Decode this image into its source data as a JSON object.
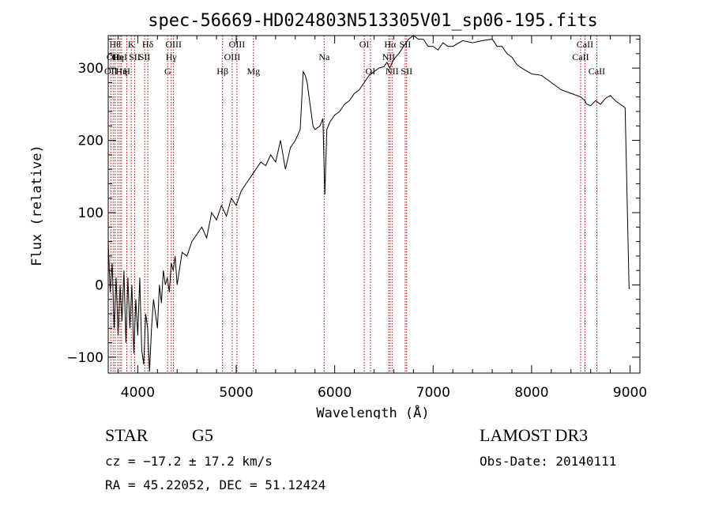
{
  "chart_data": {
    "type": "line",
    "title": "spec-56669-HD024803N513305V01_sp06-195.fits",
    "xlabel": "Wavelength (Å)",
    "ylabel": "Flux (relative)",
    "xlim": [
      3700,
      9100
    ],
    "ylim": [
      -122,
      345
    ],
    "xticks": [
      4000,
      5000,
      6000,
      7000,
      8000,
      9000
    ],
    "xtick_labels": [
      "4000",
      "5000",
      "6000",
      "7000",
      "8000",
      "9000"
    ],
    "yticks": [
      -100,
      0,
      100,
      200,
      300
    ],
    "ytick_labels": [
      "−100",
      "0",
      "100",
      "200",
      "300"
    ],
    "series": [
      {
        "name": "flux",
        "color": "#000000",
        "x": [
          3700,
          3720,
          3740,
          3760,
          3780,
          3800,
          3820,
          3840,
          3860,
          3880,
          3900,
          3920,
          3940,
          3960,
          3980,
          4000,
          4020,
          4040,
          4060,
          4080,
          4100,
          4120,
          4140,
          4160,
          4180,
          4200,
          4220,
          4240,
          4260,
          4280,
          4300,
          4320,
          4340,
          4360,
          4380,
          4400,
          4450,
          4500,
          4550,
          4600,
          4650,
          4700,
          4750,
          4800,
          4850,
          4900,
          4950,
          5000,
          5050,
          5100,
          5150,
          5200,
          5250,
          5300,
          5350,
          5400,
          5450,
          5500,
          5550,
          5600,
          5650,
          5680,
          5700,
          5720,
          5740,
          5760,
          5780,
          5800,
          5850,
          5880,
          5900,
          5920,
          5950,
          6000,
          6050,
          6100,
          6150,
          6200,
          6250,
          6300,
          6350,
          6400,
          6450,
          6500,
          6530,
          6560,
          6600,
          6650,
          6700,
          6750,
          6800,
          6850,
          6900,
          6950,
          7000,
          7050,
          7100,
          7150,
          7200,
          7300,
          7400,
          7500,
          7600,
          7650,
          7700,
          7750,
          7800,
          7850,
          7900,
          8000,
          8100,
          8200,
          8300,
          8400,
          8500,
          8540,
          8560,
          8600,
          8650,
          8700,
          8750,
          8800,
          8850,
          8900,
          8950,
          8990,
          9000
        ],
        "values": [
          60,
          -10,
          30,
          -60,
          10,
          -70,
          0,
          -50,
          20,
          -80,
          10,
          -60,
          0,
          -95,
          -20,
          -70,
          10,
          -90,
          -110,
          -40,
          -60,
          -120,
          -60,
          -20,
          -40,
          -60,
          0,
          -25,
          20,
          0,
          10,
          -10,
          30,
          20,
          40,
          0,
          45,
          40,
          60,
          70,
          80,
          65,
          100,
          90,
          110,
          95,
          120,
          110,
          130,
          140,
          150,
          160,
          170,
          165,
          180,
          170,
          200,
          160,
          190,
          200,
          215,
          295,
          290,
          280,
          260,
          240,
          220,
          215,
          220,
          230,
          125,
          215,
          225,
          235,
          240,
          250,
          255,
          265,
          270,
          280,
          290,
          295,
          300,
          302,
          308,
          300,
          312,
          320,
          330,
          340,
          345,
          340,
          340,
          330,
          330,
          325,
          335,
          330,
          330,
          338,
          335,
          338,
          340,
          330,
          330,
          320,
          315,
          305,
          300,
          292,
          290,
          280,
          270,
          265,
          260,
          255,
          250,
          248,
          255,
          250,
          258,
          262,
          255,
          250,
          245,
          -5,
          -5
        ]
      }
    ],
    "lines": [
      {
        "lam": 3727,
        "label": "OII",
        "row": 2
      },
      {
        "lam": 3750,
        "label": "OII",
        "row": 1
      },
      {
        "lam": 3770,
        "label": "Hθ",
        "row": 0
      },
      {
        "lam": 3798,
        "label": "Hη",
        "row": 1
      },
      {
        "lam": 3820,
        "label": "HeI",
        "row": 1
      },
      {
        "lam": 3835,
        "label": "Hη",
        "row": 2
      },
      {
        "lam": 3889,
        "label": "H",
        "row": 2
      },
      {
        "lam": 3934,
        "label": "K",
        "row": 0
      },
      {
        "lam": 3968,
        "label": "SII",
        "row": 1
      },
      {
        "lam": 4070,
        "label": "SII",
        "row": 1
      },
      {
        "lam": 4102,
        "label": "Hδ",
        "row": 0
      },
      {
        "lam": 4304,
        "label": "G",
        "row": 2
      },
      {
        "lam": 4340,
        "label": "Hγ",
        "row": 1
      },
      {
        "lam": 4363,
        "label": "OIII",
        "row": 0
      },
      {
        "lam": 4861,
        "label": "Hβ",
        "row": 2
      },
      {
        "lam": 4959,
        "label": "OIII",
        "row": 1
      },
      {
        "lam": 5007,
        "label": "OIII",
        "row": 0
      },
      {
        "lam": 5175,
        "label": "Mg",
        "row": 2
      },
      {
        "lam": 5893,
        "label": "Na",
        "row": 1
      },
      {
        "lam": 6300,
        "label": "OI",
        "row": 0
      },
      {
        "lam": 6363,
        "label": "OI",
        "row": 2
      },
      {
        "lam": 6548,
        "label": "NII",
        "row": 1
      },
      {
        "lam": 6563,
        "label": "Hα",
        "row": 0
      },
      {
        "lam": 6583,
        "label": "NII",
        "row": 2
      },
      {
        "lam": 6716,
        "label": "SII",
        "row": 0
      },
      {
        "lam": 6731,
        "label": "SII",
        "row": 2
      },
      {
        "lam": 8498,
        "label": "CaII",
        "row": 1
      },
      {
        "lam": 8542,
        "label": "CaII",
        "row": 0
      },
      {
        "lam": 8662,
        "label": "CaII",
        "row": 2
      }
    ]
  },
  "info": {
    "class_label": "STAR",
    "subclass": "G5",
    "survey": "LAMOST DR3",
    "redshift_text": "cz = −17.2 ± 17.2 km/s",
    "obs_date_text": "Obs-Date: 20140111",
    "coords_text": "RA =  45.22052, DEC =  51.12424"
  },
  "colors": {
    "axis": "#000000",
    "spectrum": "#000000",
    "line_markers": "#b00000"
  }
}
